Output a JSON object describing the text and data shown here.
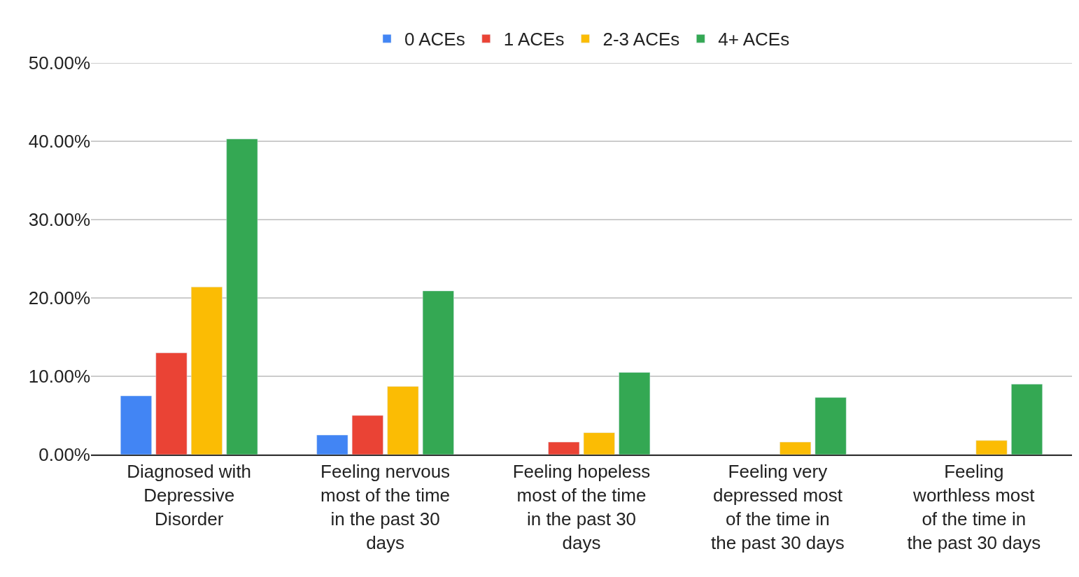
{
  "chart_data": {
    "type": "bar",
    "categories": [
      "Diagnosed with Depressive Disorder",
      "Feeling nervous most of the time in the past 30 days",
      "Feeling hopeless most of the time in the past 30 days",
      "Feeling very depressed most of the time in the past 30 days",
      "Feeling worthless most of the time in the past 30 days"
    ],
    "series": [
      {
        "name": "0 ACEs",
        "color": "#4285f4",
        "values": [
          7.5,
          2.5,
          null,
          null,
          null
        ]
      },
      {
        "name": "1 ACEs",
        "color": "#ea4335",
        "values": [
          13.0,
          5.0,
          1.6,
          null,
          null
        ]
      },
      {
        "name": "2-3 ACEs",
        "color": "#fbbc04",
        "values": [
          21.4,
          8.7,
          2.8,
          1.6,
          1.8
        ]
      },
      {
        "name": "4+ ACEs",
        "color": "#34a853",
        "values": [
          40.3,
          20.9,
          10.5,
          7.3,
          9.0
        ]
      }
    ],
    "ylim": [
      0,
      50
    ],
    "yticks": [
      {
        "value": 0,
        "label": "0.00%"
      },
      {
        "value": 10,
        "label": "10.00%"
      },
      {
        "value": 20,
        "label": "20.00%"
      },
      {
        "value": 30,
        "label": "30.00%"
      },
      {
        "value": 40,
        "label": "40.00%"
      },
      {
        "value": 50,
        "label": "50.00%"
      }
    ],
    "grid": "y",
    "legend": "top"
  }
}
